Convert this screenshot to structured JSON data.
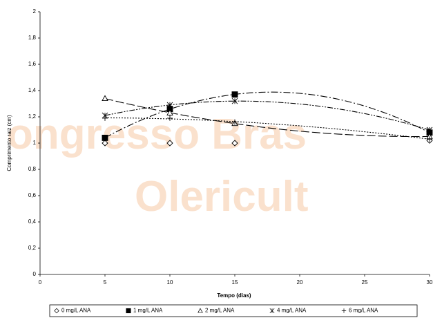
{
  "chart_data": {
    "type": "scatter",
    "watermark": [
      "ongresso Bras",
      "Olericult"
    ],
    "xlabel": "Tempo (dias)",
    "ylabel": "Comprimento raiz (cm)",
    "xlim": [
      0,
      30
    ],
    "xticks": [
      0,
      5,
      10,
      15,
      20,
      25,
      30
    ],
    "ylim": [
      0,
      2
    ],
    "yticks": [
      0,
      {
        "value": 0.2,
        "label": "0,2"
      },
      {
        "value": 0.4,
        "label": "0,4"
      },
      {
        "value": 0.6,
        "label": "0,6"
      },
      {
        "value": 0.8,
        "label": "0,8"
      },
      1,
      {
        "value": 1.2,
        "label": "1,2"
      },
      {
        "value": 1.4,
        "label": "1,4"
      },
      {
        "value": 1.6,
        "label": "1,6"
      },
      {
        "value": 1.8,
        "label": "1,8"
      },
      2
    ],
    "legend": "bottom",
    "series": [
      {
        "name": "0 mg/L ANA",
        "color": "#000000",
        "marker": "diamond",
        "x": [
          5,
          10,
          15,
          30
        ],
        "values": [
          1.0,
          1.0,
          1.0,
          1.02
        ]
      },
      {
        "name": "1 mg/L ANA",
        "color": "#000000",
        "marker": "square",
        "dash": "10,3,2,3",
        "x": [
          5,
          10,
          15,
          30
        ],
        "values": [
          1.04,
          1.26,
          1.37,
          1.08
        ]
      },
      {
        "name": "2 mg/L ANA",
        "color": "#000000",
        "marker": "triangle",
        "dash": "12,4",
        "x": [
          5,
          10,
          15,
          30
        ],
        "values": [
          1.34,
          1.23,
          1.15,
          1.05
        ]
      },
      {
        "name": "4 mg/L ANA",
        "color": "#000000",
        "marker": "asterisk",
        "dash": "8,2,2,2,2,2",
        "x": [
          5,
          10,
          15,
          30
        ],
        "values": [
          1.21,
          1.29,
          1.32,
          1.1
        ]
      },
      {
        "name": "6 mg/L ANA",
        "color": "#000000",
        "marker": "plus",
        "dash": "2,2",
        "x": [
          5,
          10,
          15,
          30
        ],
        "values": [
          1.19,
          1.19,
          1.16,
          1.03
        ]
      }
    ]
  }
}
